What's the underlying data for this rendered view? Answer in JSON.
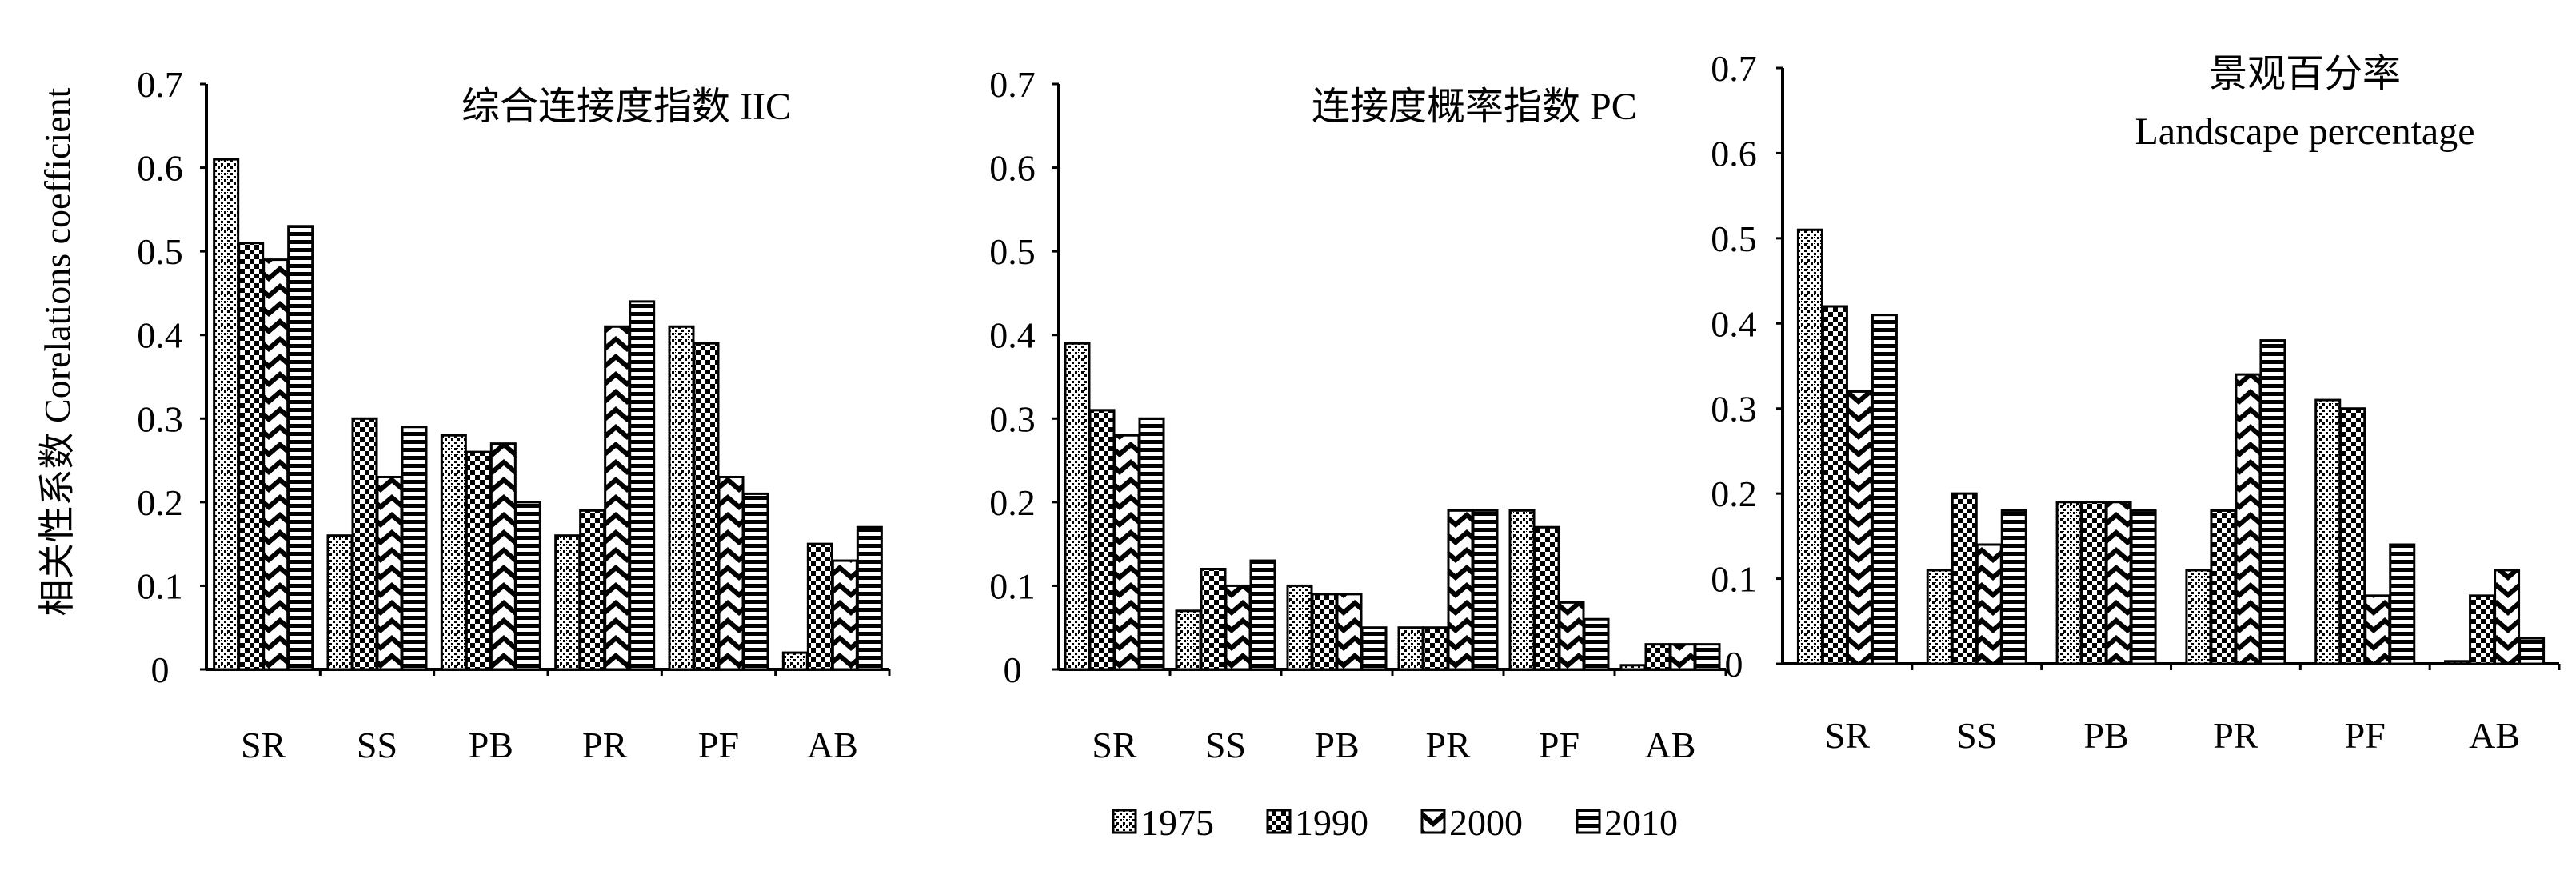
{
  "y_axis_label": "相关性系数  Corelations coefficient",
  "legend": [
    "1975",
    "1990",
    "2000",
    "2010"
  ],
  "patterns": {
    "1975": "dotted-crosshatch",
    "1990": "checker",
    "2000": "chevron",
    "2010": "horizontal-stripe"
  },
  "colors": {
    "axis": "#000000",
    "bar_stroke": "#000000",
    "background": "#ffffff"
  },
  "chart_data": [
    {
      "type": "bar",
      "title": "综合连接度指数 IIC",
      "categories": [
        "SR",
        "SS",
        "PB",
        "PR",
        "PF",
        "AB"
      ],
      "ylim": [
        0,
        0.7
      ],
      "yticks": [
        "0",
        "0.1",
        "0.2",
        "0.3",
        "0.4",
        "0.5",
        "0.6",
        "0.7"
      ],
      "grid": false,
      "series": [
        {
          "name": "1975",
          "values": [
            0.61,
            0.16,
            0.28,
            0.16,
            0.41,
            0.02
          ]
        },
        {
          "name": "1990",
          "values": [
            0.51,
            0.3,
            0.26,
            0.19,
            0.39,
            0.15
          ]
        },
        {
          "name": "2000",
          "values": [
            0.49,
            0.23,
            0.27,
            0.41,
            0.23,
            0.13
          ]
        },
        {
          "name": "2010",
          "values": [
            0.53,
            0.29,
            0.2,
            0.44,
            0.21,
            0.17
          ]
        }
      ]
    },
    {
      "type": "bar",
      "title": "连接度概率指数 PC",
      "categories": [
        "SR",
        "SS",
        "PB",
        "PR",
        "PF",
        "AB"
      ],
      "ylim": [
        0,
        0.7
      ],
      "yticks": [
        "0",
        "0.1",
        "0.2",
        "0.3",
        "0.4",
        "0.5",
        "0.6",
        "0.7"
      ],
      "grid": false,
      "series": [
        {
          "name": "1975",
          "values": [
            0.39,
            0.07,
            0.1,
            0.05,
            0.19,
            0.005
          ]
        },
        {
          "name": "1990",
          "values": [
            0.31,
            0.12,
            0.09,
            0.05,
            0.17,
            0.03
          ]
        },
        {
          "name": "2000",
          "values": [
            0.28,
            0.1,
            0.09,
            0.19,
            0.08,
            0.03
          ]
        },
        {
          "name": "2010",
          "values": [
            0.3,
            0.13,
            0.05,
            0.19,
            0.06,
            0.03
          ]
        }
      ]
    },
    {
      "type": "bar",
      "title": "景观百分率",
      "subtitle": "Landscape percentage",
      "categories": [
        "SR",
        "SS",
        "PB",
        "PR",
        "PF",
        "AB"
      ],
      "ylim": [
        0,
        0.7
      ],
      "yticks": [
        "0",
        "0.1",
        "0.2",
        "0.3",
        "0.4",
        "0.5",
        "0.6",
        "0.7"
      ],
      "grid": false,
      "series": [
        {
          "name": "1975",
          "values": [
            0.51,
            0.11,
            0.19,
            0.11,
            0.31,
            0.003
          ]
        },
        {
          "name": "1990",
          "values": [
            0.42,
            0.2,
            0.19,
            0.18,
            0.3,
            0.08
          ]
        },
        {
          "name": "2000",
          "values": [
            0.32,
            0.14,
            0.19,
            0.34,
            0.08,
            0.11
          ]
        },
        {
          "name": "2010",
          "values": [
            0.41,
            0.18,
            0.18,
            0.38,
            0.14,
            0.03
          ]
        }
      ]
    }
  ]
}
